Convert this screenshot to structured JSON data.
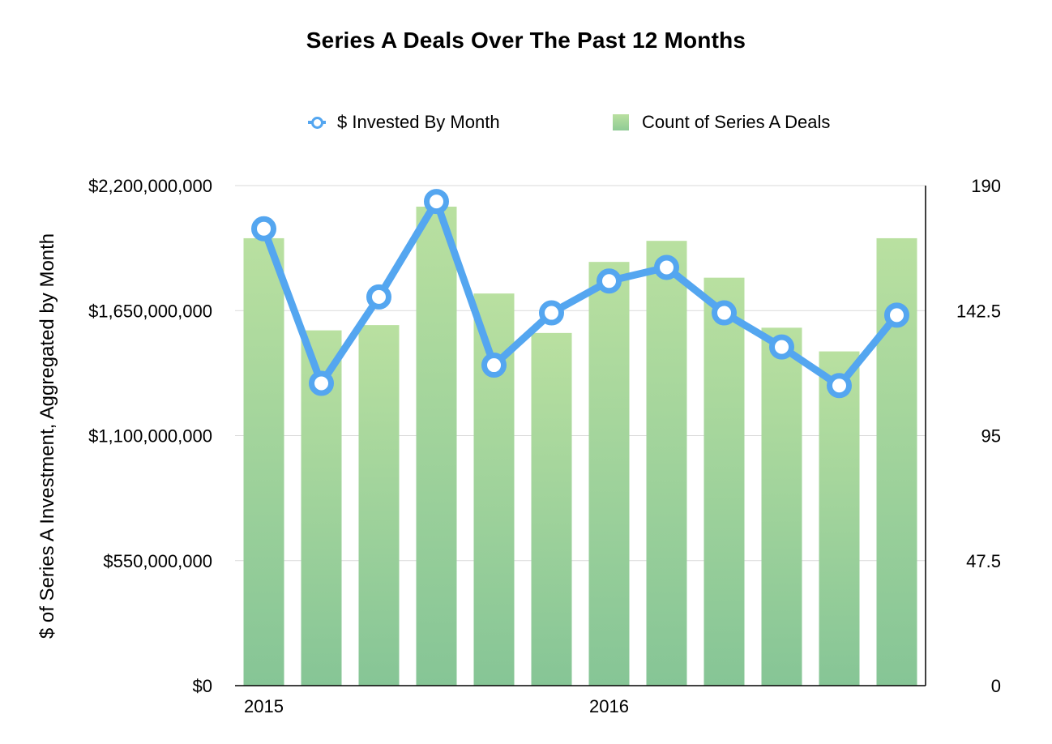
{
  "chart_data": {
    "type": "bar+line",
    "title": "Series A Deals Over The Past 12 Months",
    "ylabel": "$ of Series A Investment, Aggregated by Month",
    "y2label": "",
    "ylim": [
      0,
      2200000000
    ],
    "y2lim": [
      0,
      190
    ],
    "y_ticks": [
      "$0",
      "$550,000,000",
      "$1,100,000,000",
      "$1,650,000,000",
      "$2,200,000,000"
    ],
    "y2_ticks": [
      "0",
      "47.5",
      "95",
      "142.5",
      "190"
    ],
    "x_labels": [
      {
        "index": 0,
        "text": "2015"
      },
      {
        "index": 6,
        "text": "2016"
      }
    ],
    "grid": true,
    "legend_position": "top",
    "colors": {
      "line": "#54a6f0",
      "bar_top": "#b9e0a0",
      "bar_bottom": "#86c596"
    },
    "bar_series": {
      "name": "Count of Series A Deals",
      "values": [
        170,
        135,
        137,
        182,
        149,
        134,
        161,
        169,
        155,
        136,
        127,
        170
      ]
    },
    "line_series": {
      "name": "$ Invested By Month",
      "values": [
        2010000000,
        1330000000,
        1710000000,
        2130000000,
        1410000000,
        1640000000,
        1780000000,
        1840000000,
        1640000000,
        1490000000,
        1320000000,
        1630000000
      ]
    }
  }
}
